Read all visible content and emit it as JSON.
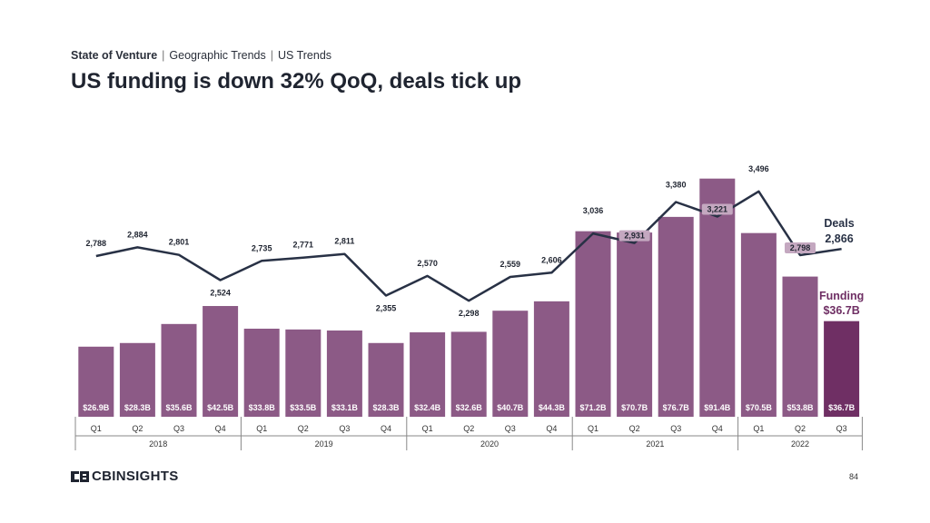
{
  "header": {
    "section": "State of Venture",
    "subsection": "Geographic Trends",
    "topic": "US Trends",
    "title": "US funding is down 32% QoQ, deals tick up"
  },
  "footer": {
    "logo_text": "CBINSIGHTS",
    "page_number": "84"
  },
  "colors": {
    "bar": "#8c5a86",
    "bar_highlight": "#6f2f64",
    "line": "#283145",
    "label_pill": "#c4a8c0"
  },
  "chart_data": {
    "type": "bar",
    "categories": [
      "Q1",
      "Q2",
      "Q3",
      "Q4",
      "Q1",
      "Q2",
      "Q3",
      "Q4",
      "Q1",
      "Q2",
      "Q3",
      "Q4",
      "Q1",
      "Q2",
      "Q3",
      "Q4",
      "Q1",
      "Q2",
      "Q3"
    ],
    "years": [
      {
        "label": "2018",
        "count": 4
      },
      {
        "label": "2019",
        "count": 4
      },
      {
        "label": "2020",
        "count": 4
      },
      {
        "label": "2021",
        "count": 4
      },
      {
        "label": "2022",
        "count": 3
      }
    ],
    "series": [
      {
        "name": "Funding",
        "kind": "bar",
        "unit": "$B",
        "values": [
          26.9,
          28.3,
          35.6,
          42.5,
          33.8,
          33.5,
          33.1,
          28.3,
          32.4,
          32.6,
          40.7,
          44.3,
          71.2,
          70.7,
          76.7,
          91.4,
          70.5,
          53.8,
          36.7
        ],
        "labels": [
          "$26.9B",
          "$28.3B",
          "$35.6B",
          "$42.5B",
          "$33.8B",
          "$33.5B",
          "$33.1B",
          "$28.3B",
          "$32.4B",
          "$32.6B",
          "$40.7B",
          "$44.3B",
          "$71.2B",
          "$70.7B",
          "$76.7B",
          "$91.4B",
          "$70.5B",
          "$53.8B",
          "$36.7B"
        ]
      },
      {
        "name": "Deals",
        "kind": "line",
        "values": [
          2788,
          2884,
          2801,
          2524,
          2735,
          2771,
          2811,
          2355,
          2570,
          2298,
          2559,
          2606,
          3036,
          2931,
          3380,
          3221,
          3496,
          2798,
          2866
        ],
        "labels": [
          "2,788",
          "2,884",
          "2,801",
          "2,524",
          "2,735",
          "2,771",
          "2,811",
          "2,355",
          "2,570",
          "2,298",
          "2,559",
          "2,606",
          "3,036",
          "2,931",
          "3,380",
          "3,221",
          "3,496",
          "2,798",
          "2,866"
        ]
      }
    ],
    "callouts": {
      "deals_name": "Deals",
      "deals_value": "2,866",
      "funding_name": "Funding",
      "funding_value": "$36.7B"
    }
  }
}
